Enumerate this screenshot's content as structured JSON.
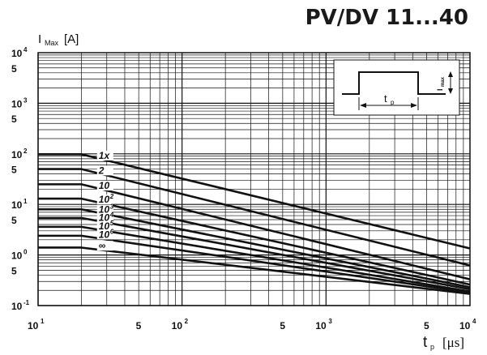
{
  "title": "PV/DV 11...40",
  "chart_data": {
    "type": "line",
    "x_scale": "log",
    "y_scale": "log",
    "xlim": [
      10,
      10000
    ],
    "ylim": [
      0.1,
      10000
    ],
    "grid": true,
    "xlabel": {
      "main": "t",
      "sub": "p",
      "unit": "[μs]"
    },
    "ylabel": {
      "main": "I",
      "sub": "Max",
      "unit": "[A]"
    },
    "x_ticks": [
      {
        "value": 10,
        "base": "10",
        "exp": "1"
      },
      {
        "value": 50,
        "base": "5",
        "exp": ""
      },
      {
        "value": 100,
        "base": "10",
        "exp": "2"
      },
      {
        "value": 500,
        "base": "5",
        "exp": ""
      },
      {
        "value": 1000,
        "base": "10",
        "exp": "3"
      },
      {
        "value": 5000,
        "base": "5",
        "exp": ""
      },
      {
        "value": 10000,
        "base": "10",
        "exp": "4"
      }
    ],
    "y_ticks": [
      {
        "value": 10000,
        "base": "10",
        "exp": "4"
      },
      {
        "value": 5000,
        "base": "5",
        "exp": ""
      },
      {
        "value": 1000,
        "base": "10",
        "exp": "3"
      },
      {
        "value": 500,
        "base": "5",
        "exp": ""
      },
      {
        "value": 100,
        "base": "10",
        "exp": "2"
      },
      {
        "value": 50,
        "base": "5",
        "exp": ""
      },
      {
        "value": 10,
        "base": "10",
        "exp": "1"
      },
      {
        "value": 5,
        "base": "5",
        "exp": ""
      },
      {
        "value": 1,
        "base": "10",
        "exp": "0"
      },
      {
        "value": 0.5,
        "base": "5",
        "exp": ""
      },
      {
        "value": 0.1,
        "base": "10",
        "exp": "-1"
      }
    ],
    "series": [
      {
        "name": "1x",
        "label_base": "1x",
        "label_exp": "",
        "x": [
          10,
          20,
          10000
        ],
        "y": [
          98,
          98,
          1.35
        ]
      },
      {
        "name": "2",
        "label_base": "2",
        "label_exp": "",
        "x": [
          10,
          20,
          10000
        ],
        "y": [
          50,
          50,
          0.62
        ]
      },
      {
        "name": "10",
        "label_base": "10",
        "label_exp": "",
        "x": [
          10,
          20,
          10000
        ],
        "y": [
          25,
          25,
          0.33
        ]
      },
      {
        "name": "10²",
        "label_base": "10",
        "label_exp": "2",
        "x": [
          10,
          20,
          10000
        ],
        "y": [
          13,
          13,
          0.26
        ]
      },
      {
        "name": "10³",
        "label_base": "10",
        "label_exp": "3",
        "x": [
          10,
          20,
          10000
        ],
        "y": [
          8,
          8,
          0.23
        ]
      },
      {
        "name": "10⁴",
        "label_base": "10",
        "label_exp": "4",
        "x": [
          10,
          20,
          10000
        ],
        "y": [
          5.4,
          5.4,
          0.21
        ]
      },
      {
        "name": "10⁵",
        "label_base": "10",
        "label_exp": "5",
        "x": [
          10,
          20,
          10000
        ],
        "y": [
          3.6,
          3.6,
          0.19
        ]
      },
      {
        "name": "10⁶",
        "label_base": "10",
        "label_exp": "6",
        "x": [
          10,
          20,
          10000
        ],
        "y": [
          2.4,
          2.4,
          0.18
        ]
      },
      {
        "name": "∞",
        "label_base": "∞",
        "label_exp": "",
        "x": [
          10,
          20,
          10000
        ],
        "y": [
          1.4,
          1.4,
          0.17
        ]
      }
    ],
    "inset": {
      "pulse_width_label": "t",
      "pulse_width_sub": "p",
      "amplitude_label": "I",
      "amplitude_sub": "max"
    }
  }
}
